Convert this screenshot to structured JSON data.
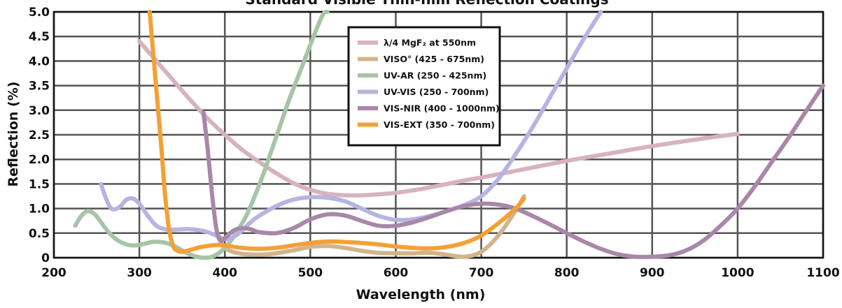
{
  "chart_data": {
    "type": "line",
    "title": "Standard Visible Thin-film Reflection Coatings",
    "xlabel": "Wavelength (nm)",
    "ylabel": "Reflection (%)",
    "xlim": [
      200,
      1100
    ],
    "ylim": [
      0,
      5.0
    ],
    "xticks": [
      "200",
      "300",
      "400",
      "500",
      "600",
      "700",
      "800",
      "900",
      "1000",
      "1100"
    ],
    "yticks": [
      "0",
      "0.5",
      "1.0",
      "1.5",
      "2.0",
      "2.5",
      "3.0",
      "3.5",
      "4.0",
      "4.5",
      "5.0"
    ],
    "grid": true,
    "legend_position": "top-center",
    "series": [
      {
        "name": "λ/4 MgF₂ at 550nm",
        "color": "#d7b2bf",
        "x": [
          300,
          320,
          340,
          360,
          380,
          400,
          420,
          440,
          460,
          480,
          500,
          520,
          540,
          560,
          580,
          600,
          620,
          640,
          660,
          680,
          700,
          750,
          800,
          850,
          900,
          950,
          1000
        ],
        "y": [
          4.4,
          4.0,
          3.6,
          3.2,
          2.83,
          2.5,
          2.2,
          1.95,
          1.72,
          1.52,
          1.38,
          1.3,
          1.27,
          1.27,
          1.29,
          1.32,
          1.37,
          1.43,
          1.5,
          1.57,
          1.63,
          1.8,
          1.97,
          2.12,
          2.27,
          2.4,
          2.52
        ]
      },
      {
        "name": "VISO° (425 - 675nm)",
        "color": "#d2b48c",
        "x": [
          390,
          400,
          420,
          450,
          480,
          500,
          520,
          540,
          560,
          580,
          600,
          620,
          640,
          660,
          680,
          700,
          720,
          740,
          750
        ],
        "y": [
          0.5,
          0.2,
          0.08,
          0.07,
          0.15,
          0.22,
          0.24,
          0.2,
          0.14,
          0.1,
          0.09,
          0.09,
          0.1,
          0.06,
          0.02,
          0.12,
          0.45,
          0.95,
          1.25
        ]
      },
      {
        "name": "UV-AR (250 - 425nm)",
        "color": "#a7c4a7",
        "x": [
          225,
          232,
          240,
          248,
          256,
          265,
          275,
          285,
          295,
          305,
          315,
          325,
          335,
          345,
          355,
          365,
          375,
          385,
          395,
          405,
          415,
          425,
          435,
          445,
          455,
          465,
          475,
          485,
          495,
          505,
          515,
          520
        ],
        "y": [
          0.65,
          0.85,
          0.95,
          0.88,
          0.7,
          0.5,
          0.35,
          0.27,
          0.25,
          0.28,
          0.32,
          0.32,
          0.28,
          0.2,
          0.1,
          0.03,
          0.0,
          0.02,
          0.12,
          0.3,
          0.55,
          0.85,
          1.25,
          1.7,
          2.2,
          2.7,
          3.2,
          3.65,
          4.1,
          4.55,
          4.95,
          5.0
        ]
      },
      {
        "name": "UV-VIS (250 - 700nm)",
        "color": "#b7b3e2",
        "x": [
          255,
          260,
          265,
          270,
          278,
          285,
          293,
          300,
          310,
          320,
          330,
          340,
          350,
          360,
          370,
          380,
          390,
          400,
          410,
          420,
          430,
          440,
          460,
          480,
          500,
          520,
          540,
          560,
          580,
          600,
          620,
          640,
          660,
          680,
          700,
          720,
          740,
          760,
          780,
          800,
          820,
          840
        ],
        "y": [
          1.5,
          1.25,
          1.05,
          0.98,
          1.05,
          1.18,
          1.2,
          1.1,
          0.85,
          0.65,
          0.58,
          0.57,
          0.58,
          0.58,
          0.56,
          0.52,
          0.45,
          0.38,
          0.42,
          0.55,
          0.72,
          0.85,
          1.05,
          1.18,
          1.23,
          1.22,
          1.15,
          1.0,
          0.85,
          0.77,
          0.78,
          0.85,
          0.95,
          1.07,
          1.25,
          1.6,
          2.1,
          2.65,
          3.25,
          3.85,
          4.45,
          5.0
        ]
      },
      {
        "name": "VIS-NIR (400 - 1000nm)",
        "color": "#a987a8",
        "x": [
          375,
          380,
          385,
          390,
          395,
          400,
          410,
          420,
          430,
          440,
          460,
          480,
          500,
          520,
          540,
          560,
          580,
          600,
          620,
          640,
          660,
          680,
          700,
          720,
          740,
          760,
          780,
          800,
          820,
          840,
          860,
          880,
          900,
          920,
          940,
          960,
          980,
          1000,
          1020,
          1040,
          1060,
          1080,
          1100
        ],
        "y": [
          2.95,
          2.2,
          1.3,
          0.6,
          0.35,
          0.4,
          0.55,
          0.6,
          0.58,
          0.52,
          0.5,
          0.6,
          0.78,
          0.88,
          0.86,
          0.75,
          0.65,
          0.65,
          0.72,
          0.83,
          0.95,
          1.05,
          1.1,
          1.08,
          1.0,
          0.85,
          0.68,
          0.5,
          0.33,
          0.18,
          0.07,
          0.02,
          0.02,
          0.05,
          0.15,
          0.35,
          0.65,
          1.0,
          1.45,
          1.95,
          2.45,
          2.98,
          3.5
        ]
      },
      {
        "name": "VIS-EXT (350 - 700nm)",
        "color": "#f4a035",
        "x": [
          312,
          318,
          325,
          330,
          335,
          340,
          345,
          350,
          360,
          370,
          380,
          390,
          400,
          420,
          440,
          460,
          480,
          500,
          520,
          540,
          560,
          580,
          600,
          620,
          640,
          660,
          680,
          700,
          720,
          740,
          750
        ],
        "y": [
          5.0,
          3.8,
          2.4,
          1.3,
          0.55,
          0.22,
          0.14,
          0.12,
          0.16,
          0.21,
          0.24,
          0.26,
          0.25,
          0.2,
          0.18,
          0.2,
          0.25,
          0.3,
          0.33,
          0.32,
          0.3,
          0.27,
          0.23,
          0.2,
          0.19,
          0.22,
          0.3,
          0.45,
          0.7,
          1.0,
          1.2
        ]
      }
    ]
  }
}
